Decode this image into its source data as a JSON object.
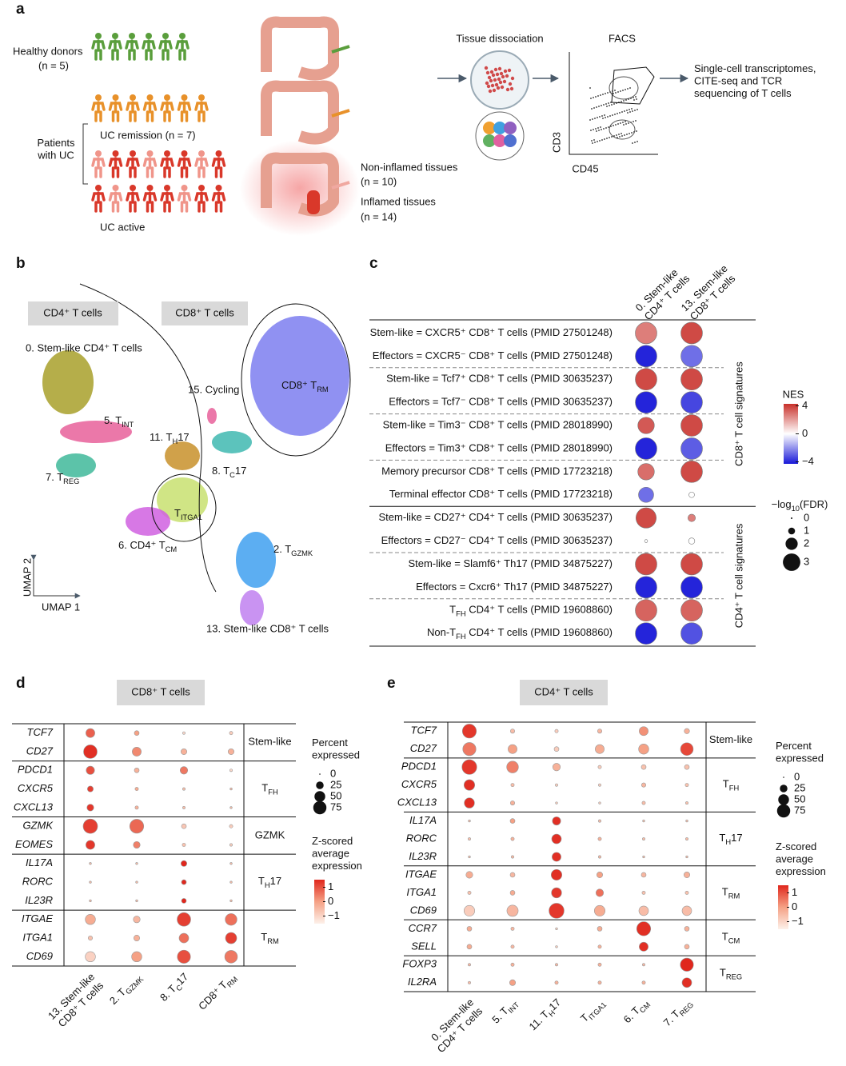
{
  "panel_a": {
    "label": "a",
    "healthy": "Healthy donors",
    "healthy_n": "(n = 5)",
    "patients": [
      "Patients",
      "with UC"
    ],
    "remission": "UC remission (n = 7)",
    "active": "UC active",
    "noninflamed": "Non-inflamed tissues",
    "noninflamed_n": "(n = 10)",
    "inflamed": "Inflamed tissues",
    "inflamed_n": "(n = 14)",
    "dissociation": "Tissue dissociation",
    "facs": "FACS",
    "facs_y": "CD3",
    "facs_x": "CD45",
    "output": [
      "Single-cell transcriptomes,",
      "CITE-seq and TCR",
      "sequencing of T cells"
    ]
  },
  "panel_b": {
    "label": "b",
    "cd4_box": "CD4⁺ T cells",
    "cd8_box": "CD8⁺ T cells",
    "clusters": [
      "0. Stem-like CD4⁺ T cells",
      {
        "text": "5. T",
        "sub": "INT"
      },
      {
        "text": "7. T",
        "sub": "REG"
      },
      {
        "text": "11. T",
        "sub": "H",
        "after": "17"
      },
      "15. Cycling",
      {
        "text": "8. T",
        "sub": "C",
        "after": "17"
      },
      {
        "text": "CD8⁺ T",
        "sub": "RM"
      },
      {
        "text": "T",
        "sub": "ITGA1"
      },
      {
        "text": "6. CD4⁺ T",
        "sub": "CM"
      },
      {
        "text": "2. T",
        "sub": "GZMK"
      },
      "13. Stem-like CD8⁺ T cells"
    ],
    "axis_y": "UMAP 2",
    "axis_x": "UMAP 1"
  },
  "panel_c": {
    "label": "c",
    "columns": [
      [
        "0. Stem-like",
        "CD4⁺ T cells"
      ],
      [
        "13. Stem-like",
        "CD8⁺ T cells"
      ]
    ],
    "sections": [
      {
        "name": "CD8⁺ T cell signatures",
        "rows": [
          {
            "label": "Stem-like = CXCR5⁺ CD8⁺ T cells (PMID 27501248)",
            "nes": [
              2.5,
              3.5
            ],
            "fdr": [
              3,
              3
            ]
          },
          {
            "label": "Effectors = CXCR5⁻ CD8⁺ T cells (PMID 27501248)",
            "nes": [
              -3.8,
              -2.5
            ],
            "fdr": [
              3,
              3
            ]
          },
          {
            "label": "Stem-like = Tcf7⁺ CD8⁺ T cells (PMID 30635237)",
            "nes": [
              3.5,
              3.5
            ],
            "fdr": [
              3,
              3
            ]
          },
          {
            "label": "Effectors = Tcf7⁻ CD8⁺ T cells (PMID 30635237)",
            "nes": [
              -3.8,
              -3.2
            ],
            "fdr": [
              3,
              3
            ]
          },
          {
            "label": "Stem-like = Tim3⁻ CD8⁺ T cells (PMID 28018990)",
            "nes": [
              3.2,
              3.5
            ],
            "fdr": [
              2.2,
              3
            ]
          },
          {
            "label": "Effectors = Tim3⁺ CD8⁺ T cells (PMID 28018990)",
            "nes": [
              -3.8,
              -2.8
            ],
            "fdr": [
              3,
              3
            ]
          },
          {
            "label": "Memory precursor CD8⁺ T cells (PMID 17723218)",
            "nes": [
              2.8,
              3.5
            ],
            "fdr": [
              2.2,
              3
            ]
          },
          {
            "label": "Terminal effector CD8⁺ T cells (PMID 17723218)",
            "nes": [
              -2.5,
              0
            ],
            "fdr": [
              2,
              0.5
            ]
          }
        ]
      },
      {
        "name": "CD4⁺ T cell signatures",
        "rows": [
          {
            "label": "Stem-like = CD27⁺ CD4⁺ T cells (PMID 30635237)",
            "nes": [
              3.5,
              2.5
            ],
            "fdr": [
              2.8,
              0.8
            ]
          },
          {
            "label": "Effectors = CD27⁻ CD4⁺ T cells (PMID 30635237)",
            "nes": [
              0,
              0
            ],
            "fdr": [
              0.1,
              0.6
            ]
          },
          {
            "label": "Stem-like = Slamf6⁺ Th17 (PMID 34875227)",
            "nes": [
              3.5,
              3.5
            ],
            "fdr": [
              3,
              3
            ]
          },
          {
            "label": "Effectors = Cxcr6⁺ Th17 (PMID 34875227)",
            "nes": [
              -3.8,
              -3.8
            ],
            "fdr": [
              3,
              3
            ]
          },
          {
            "label": {
              "text": "T",
              "sub": "FH",
              "after": " CD4⁺ T cells (PMID 19608860)"
            },
            "nes": [
              3,
              3
            ],
            "fdr": [
              3,
              3
            ]
          },
          {
            "label": {
              "text": "Non-T",
              "sub": "FH",
              "after": " CD4⁺ T cells (PMID 19608860)"
            },
            "nes": [
              -3.8,
              -3
            ],
            "fdr": [
              3,
              3
            ]
          }
        ]
      }
    ],
    "nes_legend": {
      "title": "NES",
      "ticks": [
        4,
        0,
        {
          "value": -4,
          "label": "−4"
        }
      ]
    },
    "fdr_legend": {
      "title": {
        "text": "−log",
        "sub": "10",
        "after": "(FDR)"
      },
      "ticks": [
        0,
        1,
        2,
        3
      ]
    }
  },
  "panel_d": {
    "label": "d",
    "title": "CD8⁺ T cells",
    "clusters": [
      [
        "13. Stem-like",
        "CD8⁺ T cells"
      ],
      {
        "text": "2. T",
        "sub": "GZMK"
      },
      {
        "text": "8. T",
        "sub": "C",
        "after": "17"
      },
      {
        "text": "CD8⁺ T",
        "sub": "RM"
      }
    ],
    "groups": [
      {
        "name": "Stem-like",
        "genes": [
          "TCF7",
          "CD27"
        ],
        "pct": [
          [
            35,
            10,
            3,
            5
          ],
          [
            80,
            35,
            15,
            15
          ]
        ],
        "z": [
          [
            0.8,
            0,
            -1,
            -0.8
          ],
          [
            1.4,
            0.3,
            -0.3,
            -0.3
          ]
        ]
      },
      {
        "name": {
          "text": "T",
          "sub": "FH"
        },
        "genes": [
          "PDCD1",
          "CXCR5",
          "CXCL13"
        ],
        "pct": [
          [
            30,
            10,
            25,
            3
          ],
          [
            15,
            5,
            3,
            2
          ],
          [
            20,
            5,
            3,
            2
          ]
        ],
        "z": [
          [
            1,
            -0.3,
            0.5,
            -1
          ],
          [
            1.2,
            -0.2,
            -0.5,
            -0.5
          ],
          [
            1.3,
            -0.3,
            -0.5,
            -0.5
          ]
        ]
      },
      {
        "name": "GZMK",
        "genes": [
          "GZMK",
          "EOMES"
        ],
        "pct": [
          [
            90,
            85,
            10,
            5
          ],
          [
            35,
            20,
            5,
            3
          ]
        ],
        "z": [
          [
            1.2,
            0.7,
            -0.7,
            -0.8
          ],
          [
            1.3,
            0.4,
            -0.6,
            -0.8
          ]
        ]
      },
      {
        "name": {
          "text": "T",
          "sub": "H",
          "after": "17"
        },
        "genes": [
          "IL17A",
          "RORC",
          "IL23R"
        ],
        "pct": [
          [
            2,
            2,
            15,
            2
          ],
          [
            2,
            2,
            10,
            2
          ],
          [
            2,
            2,
            10,
            2
          ]
        ],
        "z": [
          [
            -0.5,
            -0.5,
            1.5,
            -0.5
          ],
          [
            -0.5,
            -0.5,
            1.5,
            -0.5
          ],
          [
            -0.5,
            -0.5,
            1.5,
            -0.5
          ]
        ]
      },
      {
        "name": {
          "text": "T",
          "sub": "RM"
        },
        "genes": [
          "ITGAE",
          "ITGA1",
          "CD69"
        ],
        "pct": [
          [
            45,
            20,
            80,
            60
          ],
          [
            8,
            15,
            40,
            55
          ],
          [
            45,
            45,
            75,
            70
          ]
        ],
        "z": [
          [
            -0.2,
            -0.4,
            1.2,
            0.6
          ],
          [
            -0.6,
            -0.3,
            0.6,
            1.2
          ],
          [
            -0.9,
            0,
            1,
            0.5
          ]
        ]
      }
    ],
    "size_legend": {
      "title": [
        "Percent",
        "expressed"
      ],
      "ticks": [
        0,
        25,
        50,
        75
      ]
    },
    "color_legend": {
      "title": [
        "Z-scored",
        "average",
        "expression"
      ],
      "ticks": [
        1,
        0,
        {
          "value": -1,
          "label": "−1"
        }
      ]
    }
  },
  "panel_e": {
    "label": "e",
    "title": "CD4⁺ T cells",
    "clusters": [
      [
        "0. Stem-like",
        "CD4⁺ T cells"
      ],
      {
        "text": "5. T",
        "sub": "INT"
      },
      {
        "text": "11. T",
        "sub": "H",
        "after": "17"
      },
      {
        "text": "T",
        "sub": "ITGA1"
      },
      {
        "text": "6. T",
        "sub": "CM"
      },
      {
        "text": "7. T",
        "sub": "REG"
      }
    ],
    "groups": [
      {
        "name": "Stem-like",
        "genes": [
          "TCF7",
          "CD27"
        ],
        "pct": [
          [
            85,
            8,
            5,
            8,
            35,
            12
          ],
          [
            75,
            35,
            10,
            35,
            45,
            70
          ]
        ],
        "z": [
          [
            1.3,
            -0.5,
            -0.8,
            -0.4,
            0.2,
            -0.3
          ],
          [
            0.5,
            0,
            -0.8,
            -0.2,
            0,
            1.1
          ]
        ]
      },
      {
        "name": {
          "text": "T",
          "sub": "FH"
        },
        "genes": [
          "PDCD1",
          "CXCR5",
          "CXCL13"
        ],
        "pct": [
          [
            95,
            60,
            25,
            5,
            10,
            10
          ],
          [
            50,
            5,
            3,
            3,
            8,
            5
          ],
          [
            45,
            8,
            2,
            2,
            5,
            3
          ]
        ],
        "z": [
          [
            1.3,
            0.4,
            -0.3,
            -0.8,
            -0.6,
            -0.6
          ],
          [
            1.4,
            -0.5,
            -0.8,
            -0.8,
            -0.4,
            -0.6
          ],
          [
            1.4,
            -0.3,
            -0.8,
            -0.8,
            -0.5,
            -0.6
          ]
        ]
      },
      {
        "name": {
          "text": "T",
          "sub": "H",
          "after": "17"
        },
        "genes": [
          "IL17A",
          "RORC",
          "IL23R"
        ],
        "pct": [
          [
            2,
            10,
            30,
            3,
            2,
            2
          ],
          [
            3,
            5,
            40,
            5,
            3,
            3
          ],
          [
            2,
            3,
            35,
            3,
            2,
            2
          ]
        ],
        "z": [
          [
            -0.6,
            0,
            1.4,
            -0.5,
            -0.6,
            -0.6
          ],
          [
            -0.6,
            -0.3,
            1.4,
            -0.3,
            -0.5,
            -0.5
          ],
          [
            -0.6,
            -0.4,
            1.4,
            -0.4,
            -0.5,
            -0.5
          ]
        ]
      },
      {
        "name": {
          "text": "T",
          "sub": "RM"
        },
        "genes": [
          "ITGAE",
          "ITGA1",
          "CD69"
        ],
        "pct": [
          [
            20,
            10,
            50,
            15,
            10,
            15
          ],
          [
            5,
            10,
            45,
            25,
            5,
            5
          ],
          [
            50,
            55,
            99,
            50,
            40,
            40
          ]
        ],
        "z": [
          [
            -0.2,
            -0.4,
            1.4,
            0,
            -0.4,
            -0.3
          ],
          [
            -0.6,
            -0.2,
            1.3,
            0.6,
            -0.6,
            -0.6
          ],
          [
            -0.8,
            -0.4,
            1.3,
            -0.2,
            -0.5,
            -0.5
          ]
        ]
      },
      {
        "name": {
          "text": "T",
          "sub": "CM"
        },
        "genes": [
          "CCR7",
          "SELL"
        ],
        "pct": [
          [
            10,
            5,
            2,
            10,
            85,
            10
          ],
          [
            10,
            5,
            2,
            5,
            35,
            10
          ]
        ],
        "z": [
          [
            -0.2,
            -0.4,
            -0.8,
            -0.2,
            1.4,
            -0.3
          ],
          [
            -0.2,
            -0.4,
            -0.8,
            -0.3,
            1.4,
            -0.3
          ]
        ]
      },
      {
        "name": {
          "text": "T",
          "sub": "REG"
        },
        "genes": [
          "FOXP3",
          "IL2RA"
        ],
        "pct": [
          [
            3,
            5,
            3,
            5,
            3,
            75
          ],
          [
            3,
            15,
            5,
            5,
            5,
            40
          ]
        ],
        "z": [
          [
            -0.4,
            -0.3,
            -0.4,
            -0.3,
            -0.4,
            1.5
          ],
          [
            -0.5,
            0,
            -0.3,
            -0.3,
            -0.3,
            1.4
          ]
        ]
      }
    ],
    "size_legend": {
      "title": [
        "Percent",
        "expressed"
      ],
      "ticks": [
        0,
        25,
        50,
        75
      ]
    },
    "color_legend": {
      "title": [
        "Z-scored",
        "average",
        "expression"
      ],
      "ticks": [
        1,
        0,
        {
          "value": -1,
          "label": "−1"
        }
      ]
    }
  }
}
